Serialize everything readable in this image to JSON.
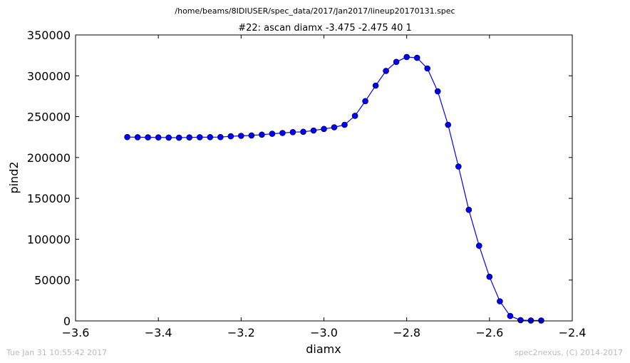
{
  "footer": {
    "timestamp": "Tue Jan 31 10:55:42 2017",
    "credit": "spec2nexus, (C) 2014-2017"
  },
  "chart_data": {
    "type": "line",
    "suptitle": "/home/beams/8IDIUSER/spec_data/2017/Jan2017/lineup20170131.spec",
    "title": "#22: ascan  diamx -3.475 -2.475  40 1",
    "xlabel": "diamx",
    "ylabel": "pind2",
    "xlim": [
      -3.6,
      -2.4
    ],
    "ylim": [
      0,
      350000
    ],
    "xticks": [
      -3.6,
      -3.4,
      -3.2,
      -3.0,
      -2.8,
      -2.6,
      -2.4
    ],
    "xtick_labels": [
      "−3.6",
      "−3.4",
      "−3.2",
      "−3.0",
      "−2.8",
      "−2.6",
      "−2.4"
    ],
    "yticks": [
      0,
      50000,
      100000,
      150000,
      200000,
      250000,
      300000,
      350000
    ],
    "ytick_labels": [
      "0",
      "50000",
      "100000",
      "150000",
      "200000",
      "250000",
      "300000",
      "350000"
    ],
    "grid": false,
    "line_color": "#0000ff",
    "marker": "circle",
    "x": [
      -3.475,
      -3.45,
      -3.425,
      -3.4,
      -3.375,
      -3.35,
      -3.325,
      -3.3,
      -3.275,
      -3.25,
      -3.225,
      -3.2,
      -3.175,
      -3.15,
      -3.125,
      -3.1,
      -3.075,
      -3.05,
      -3.025,
      -3.0,
      -2.975,
      -2.95,
      -2.925,
      -2.9,
      -2.875,
      -2.85,
      -2.825,
      -2.8,
      -2.775,
      -2.75,
      -2.725,
      -2.7,
      -2.675,
      -2.65,
      -2.625,
      -2.6,
      -2.575,
      -2.55,
      -2.525,
      -2.5,
      -2.475
    ],
    "y": [
      225000,
      224800,
      224700,
      224600,
      224400,
      224200,
      224600,
      224800,
      224900,
      225000,
      226000,
      226500,
      227000,
      228000,
      229000,
      230000,
      231000,
      231500,
      233000,
      235000,
      237000,
      240000,
      251000,
      269000,
      288000,
      306000,
      317000,
      323000,
      322000,
      309000,
      281000,
      240000,
      189000,
      136000,
      92000,
      54000,
      24000,
      6000,
      1000,
      500,
      500
    ]
  }
}
